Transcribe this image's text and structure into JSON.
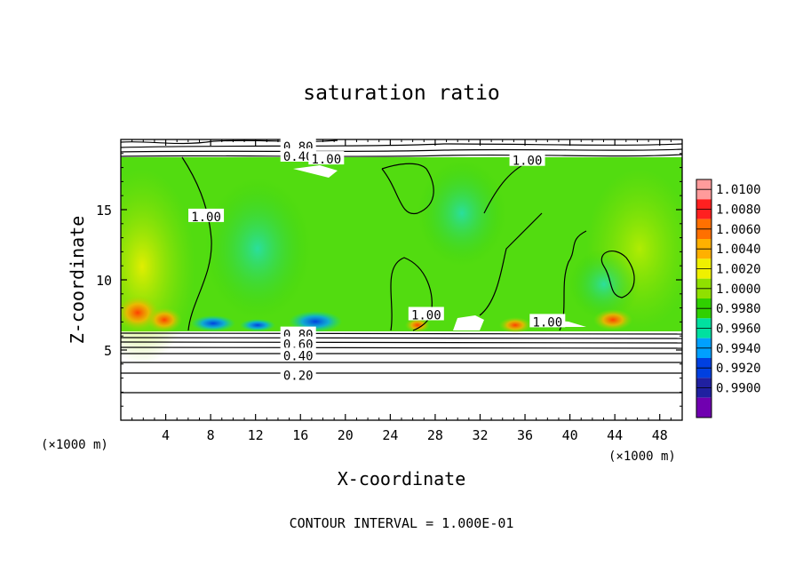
{
  "chart_data": {
    "type": "heatmap",
    "title": "saturation ratio",
    "xlabel": "X-coordinate",
    "ylabel": "Z-coordinate",
    "x_unit_left": "(×1000 m)",
    "x_unit_right": "(×1000 m)",
    "xlim": [
      0,
      50
    ],
    "ylim": [
      0,
      20
    ],
    "x_ticks": [
      4,
      8,
      12,
      16,
      20,
      24,
      28,
      32,
      36,
      40,
      44,
      48
    ],
    "y_ticks": [
      5,
      10,
      15
    ],
    "footer": "CONTOUR INTERVAL = 1.000E-01",
    "colorbar": {
      "levels": [
        "1.0100",
        "1.0080",
        "1.0060",
        "1.0040",
        "1.0020",
        "1.0000",
        "0.9980",
        "0.9960",
        "0.9940",
        "0.9920",
        "0.9900"
      ],
      "colors": [
        "#ff9b9b",
        "#ff2020",
        "#ff7000",
        "#ffb000",
        "#f0f000",
        "#90e000",
        "#30d000",
        "#00e0a0",
        "#00a0ff",
        "#0040e0",
        "#2020a0",
        "#7000b0"
      ]
    },
    "contour_labels": [
      {
        "text": "0.80",
        "x": 15.8,
        "y": 6.1
      },
      {
        "text": "0.60",
        "x": 15.8,
        "y": 5.4
      },
      {
        "text": "0.40",
        "x": 15.8,
        "y": 4.6
      },
      {
        "text": "0.20",
        "x": 15.8,
        "y": 3.2
      },
      {
        "text": "0.80",
        "x": 15.8,
        "y": 19.5
      },
      {
        "text": "0.40",
        "x": 15.8,
        "y": 18.8
      },
      {
        "text": "1.00",
        "x": 18.3,
        "y": 18.6
      },
      {
        "text": "1.00",
        "x": 36.2,
        "y": 18.5
      },
      {
        "text": "1.00",
        "x": 7.6,
        "y": 14.5
      },
      {
        "text": "1.00",
        "x": 27.2,
        "y": 7.5
      },
      {
        "text": "1.00",
        "x": 38.0,
        "y": 7.0
      }
    ]
  }
}
